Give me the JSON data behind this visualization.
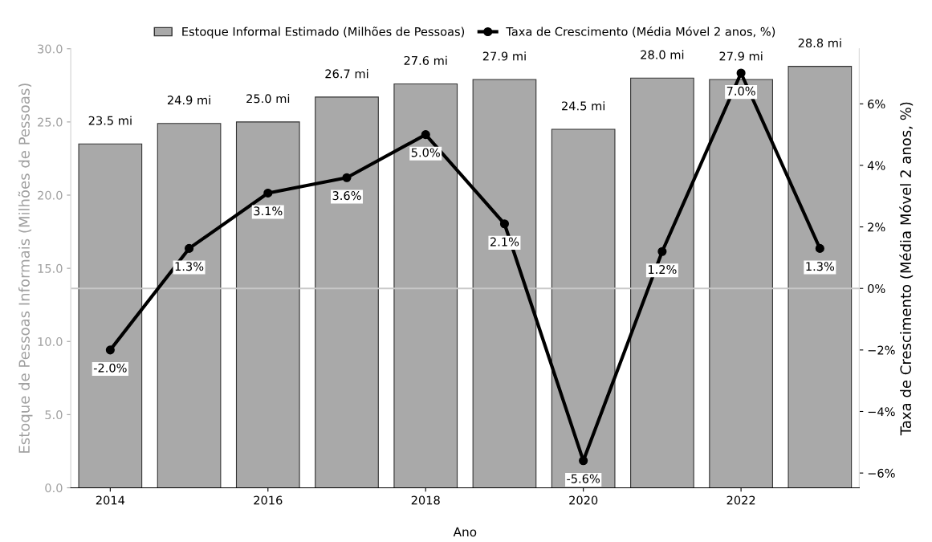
{
  "chart_data": {
    "type": "bar",
    "xlabel": "Ano",
    "ylabel": "Estoque de Pessoas Informais (Milhões de Pessoas)",
    "y2label": "Taxa de Crescimento (Média Móvel 2 anos, %)",
    "x": [
      2014,
      2015,
      2016,
      2017,
      2018,
      2019,
      2020,
      2021,
      2022,
      2023
    ],
    "xlim": [
      2013.5,
      2023.5
    ],
    "xticks": [
      2014,
      2016,
      2018,
      2020,
      2022
    ],
    "ylim": [
      0,
      30
    ],
    "yticks": [
      {
        "value": 0,
        "label": "0.0"
      },
      {
        "value": 5,
        "label": "5.0"
      },
      {
        "value": 10,
        "label": "10.0"
      },
      {
        "value": 15,
        "label": "15.0"
      },
      {
        "value": 20,
        "label": "20.0"
      },
      {
        "value": 25,
        "label": "25.0"
      },
      {
        "value": 30,
        "label": "30.0"
      }
    ],
    "y2lim": [
      -6.48,
      7.79
    ],
    "y2ticks": [
      {
        "value": -6,
        "label": "−6%"
      },
      {
        "value": -4,
        "label": "−4%"
      },
      {
        "value": -2,
        "label": "−2%"
      },
      {
        "value": 0,
        "label": "0%"
      },
      {
        "value": 2,
        "label": "2%"
      },
      {
        "value": 4,
        "label": "4%"
      },
      {
        "value": 6,
        "label": "6%"
      }
    ],
    "series": [
      {
        "name": "Estoque Informal Estimado (Milhões de Pessoas)",
        "color": "#a9a9a9",
        "values": [
          23.5,
          24.9,
          25.0,
          26.7,
          27.6,
          27.9,
          24.5,
          28.0,
          27.9,
          28.8
        ],
        "value_labels": [
          "23.5 mi",
          "24.9 mi",
          "25.0 mi",
          "26.7 mi",
          "27.6 mi",
          "27.9 mi",
          "24.5 mi",
          "28.0 mi",
          "27.9 mi",
          "28.8 mi"
        ]
      },
      {
        "name": "Taxa de Crescimento (Média Móvel 2 anos, %)",
        "type": "line",
        "axis": "y2",
        "color": "#000000",
        "marker": "circle",
        "line_style": "solid",
        "values": [
          -2.0,
          1.3,
          3.1,
          3.6,
          5.0,
          2.1,
          -5.6,
          1.2,
          7.0,
          1.3
        ],
        "value_labels": [
          "-2.0%",
          "1.3%",
          "3.1%",
          "3.6%",
          "5.0%",
          "2.1%",
          "-5.6%",
          "1.2%",
          "7.0%",
          "1.3%"
        ]
      }
    ],
    "ref_lines": [
      {
        "axis": "y2",
        "value": 0,
        "color": "#c8c8c8",
        "line_style": "solid"
      }
    ],
    "grid": false,
    "legend": "top"
  }
}
